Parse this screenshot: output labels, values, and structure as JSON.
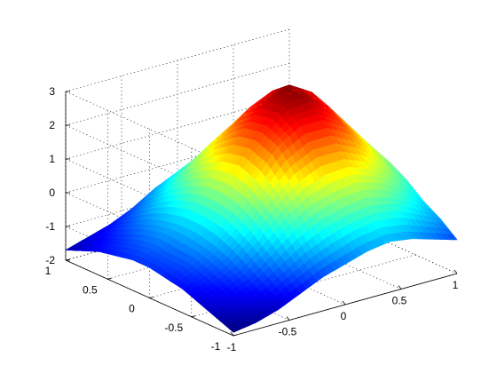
{
  "chart_data": {
    "type": "surface",
    "title": "",
    "xlabel": "",
    "ylabel": "",
    "zlabel": "",
    "xlim": [
      -1,
      1
    ],
    "ylim": [
      -1,
      1
    ],
    "zlim": [
      -2,
      3
    ],
    "grid": true,
    "colormap": "jet",
    "x_ticks": [
      "-1",
      "-0.5",
      "0",
      "0.5",
      "1"
    ],
    "y_ticks": [
      "-1",
      "-0.5",
      "0",
      "0.5",
      "1"
    ],
    "z_ticks": [
      "-2",
      "-1",
      "0",
      "1",
      "2",
      "3"
    ],
    "surface": {
      "x": [
        -1.0,
        -0.8,
        -0.6,
        -0.4,
        -0.2,
        0.0,
        0.2,
        0.4,
        0.6,
        0.8,
        1.0
      ],
      "y": [
        -1.0,
        -0.8,
        -0.6,
        -0.4,
        -0.2,
        0.0,
        0.2,
        0.4,
        0.6,
        0.8,
        1.0
      ],
      "z_rows_by_y": [
        [
          -1.9,
          -1.8,
          -1.6,
          -1.3,
          -1.0,
          -0.8,
          -0.6,
          -0.5,
          -0.6,
          -0.8,
          -1.0
        ],
        [
          -1.7,
          -1.5,
          -1.3,
          -0.9,
          -0.5,
          -0.2,
          0.0,
          0.1,
          0.0,
          -0.3,
          -0.6
        ],
        [
          -1.5,
          -1.3,
          -1.0,
          -0.5,
          0.1,
          0.5,
          0.7,
          0.8,
          0.6,
          0.2,
          -0.3
        ],
        [
          -1.3,
          -1.1,
          -0.7,
          -0.1,
          0.6,
          1.2,
          1.5,
          1.5,
          1.2,
          0.7,
          0.1
        ],
        [
          -1.2,
          -0.9,
          -0.5,
          0.2,
          1.0,
          1.8,
          2.2,
          2.2,
          1.8,
          1.1,
          0.4
        ],
        [
          -1.1,
          -0.9,
          -0.4,
          0.3,
          1.2,
          2.0,
          2.6,
          2.7,
          2.2,
          1.4,
          0.6
        ],
        [
          -1.1,
          -0.8,
          -0.4,
          0.3,
          1.1,
          1.9,
          2.5,
          2.8,
          2.4,
          1.6,
          0.7
        ],
        [
          -1.2,
          -0.9,
          -0.5,
          0.1,
          0.8,
          1.5,
          2.1,
          2.4,
          2.1,
          1.4,
          0.6
        ],
        [
          -1.3,
          -1.1,
          -0.7,
          -0.2,
          0.4,
          1.0,
          1.4,
          1.6,
          1.4,
          0.9,
          0.3
        ],
        [
          -1.5,
          -1.3,
          -1.0,
          -0.6,
          -0.1,
          0.3,
          0.6,
          0.7,
          0.5,
          0.2,
          -0.2
        ],
        [
          -1.7,
          -1.5,
          -1.3,
          -1.0,
          -0.6,
          -0.3,
          -0.1,
          0.0,
          -0.1,
          -0.4,
          -0.7
        ]
      ]
    }
  }
}
